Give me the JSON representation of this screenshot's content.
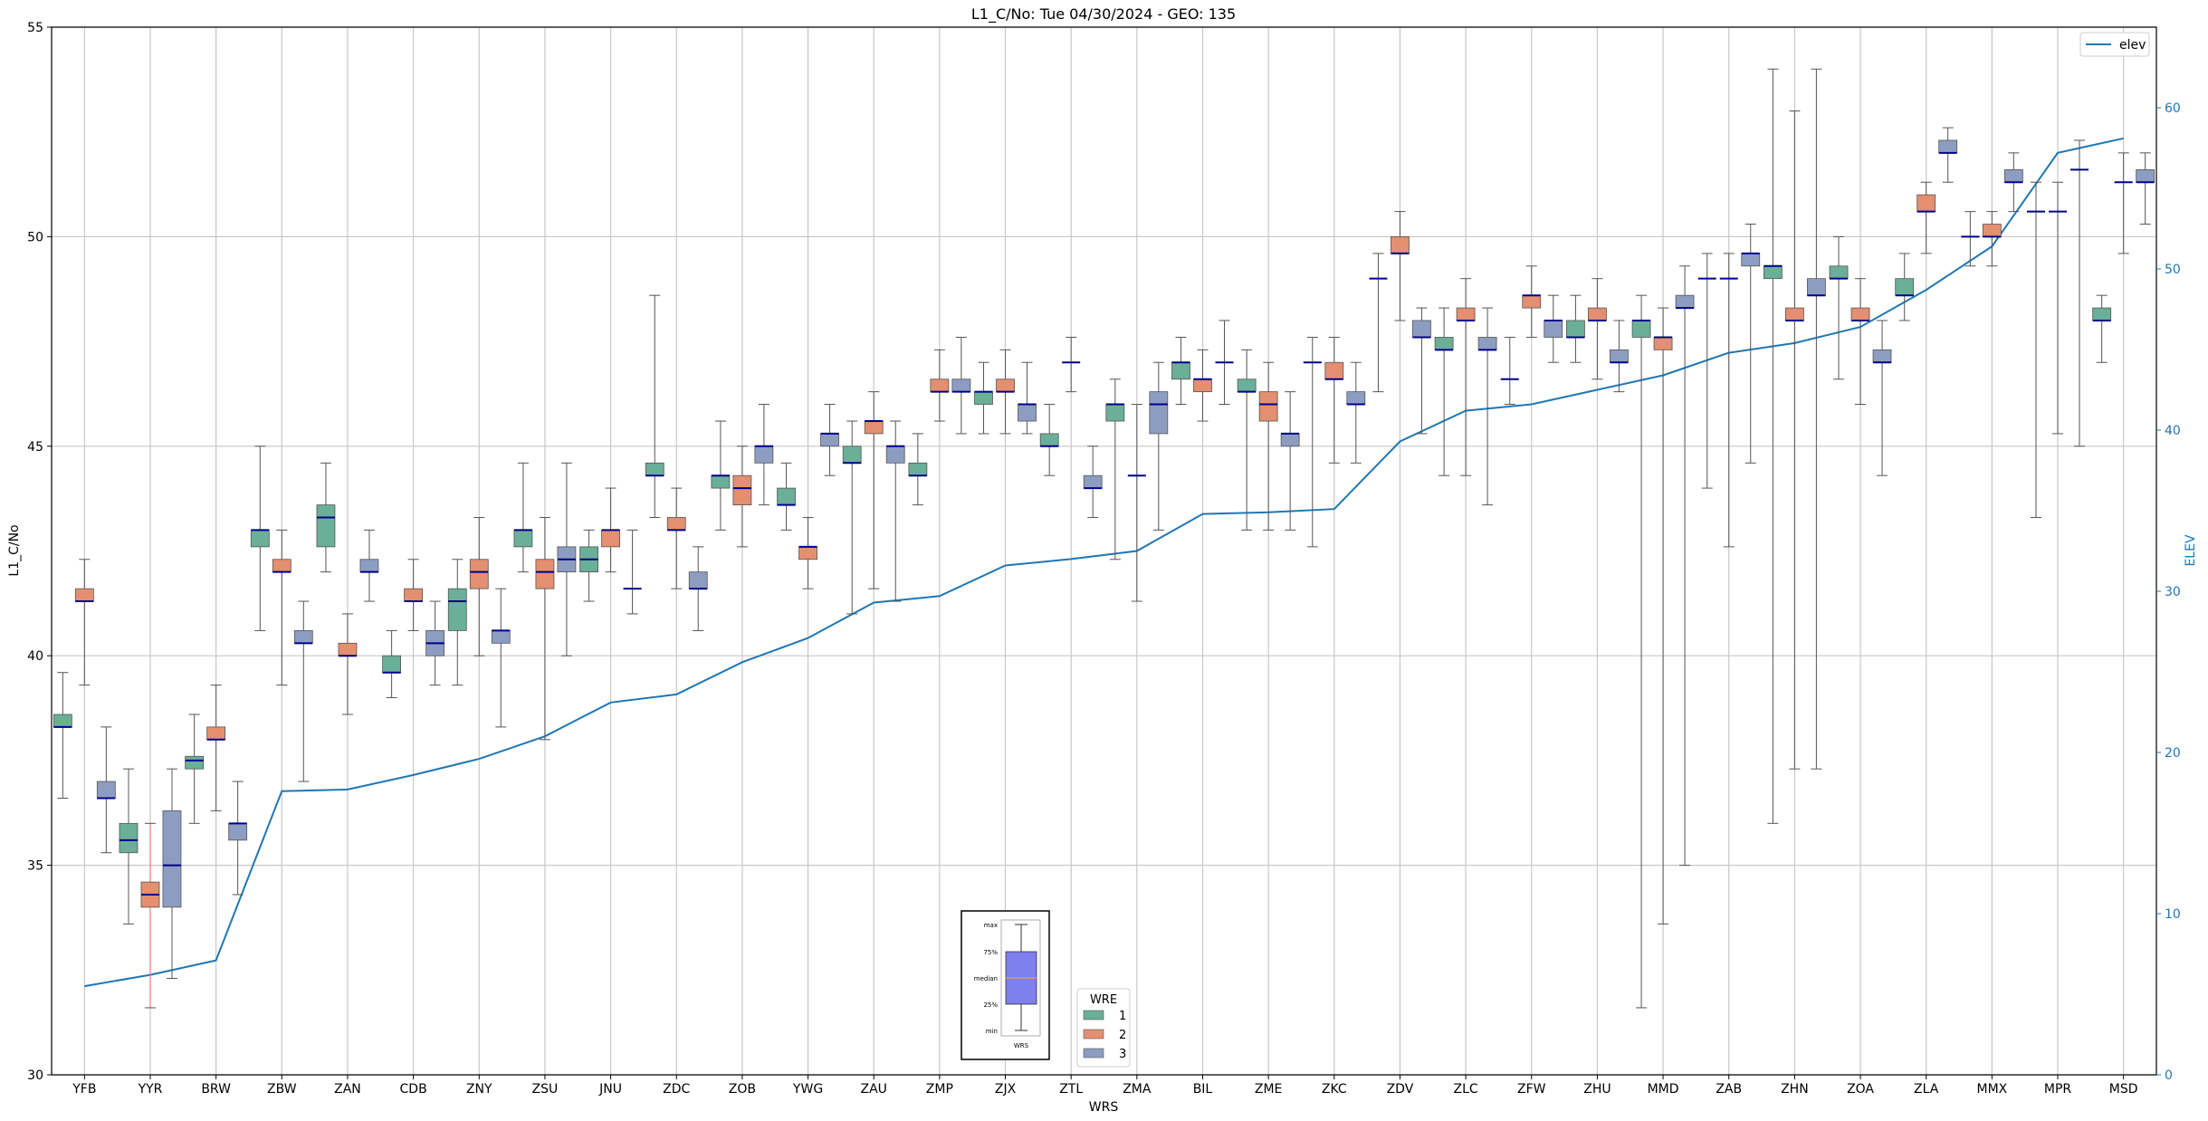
{
  "chart_data": {
    "type": "box",
    "title": "L1_C/No: Tue 04/30/2024 - GEO: 135",
    "xlabel": "WRS",
    "ylabel": "L1_C/No",
    "y2label": "ELEV",
    "ylim": [
      30,
      55
    ],
    "y2lim": [
      0,
      65
    ],
    "yticks": [
      "30",
      "35",
      "40",
      "45",
      "50",
      "55"
    ],
    "y2ticks": [
      "0",
      "10",
      "20",
      "30",
      "40",
      "50",
      "60"
    ],
    "grid": true,
    "categories": [
      "YFB",
      "YYR",
      "BRW",
      "ZBW",
      "ZAN",
      "CDB",
      "ZNY",
      "ZSU",
      "JNU",
      "ZDC",
      "ZOB",
      "YWG",
      "ZAU",
      "ZMP",
      "ZJX",
      "ZTL",
      "ZMA",
      "BIL",
      "ZME",
      "ZKC",
      "ZDV",
      "ZLC",
      "ZFW",
      "ZHU",
      "MMD",
      "ZAB",
      "ZHN",
      "ZOA",
      "ZLA",
      "MMX",
      "MPR",
      "MSD"
    ],
    "colors": {
      "wre1": "#6aaf97",
      "wre2": "#e38f70",
      "wre3": "#8d9dc1",
      "median": "#00008b",
      "elev": "#1f77b4",
      "outlier_whisker": "#ff6666"
    },
    "legend": {
      "title": "WRE",
      "entries": [
        "1",
        "2",
        "3"
      ],
      "placement": "bottom-center"
    },
    "legend2": {
      "entries": [
        "elev"
      ],
      "placement": "top-right"
    },
    "key_box": {
      "labels": [
        "max",
        "75%",
        "median",
        "25%",
        "min"
      ],
      "xlabel": "WRS"
    },
    "elev_series": {
      "name": "elev",
      "values": [
        5.5,
        6.2,
        7.1,
        17.6,
        17.7,
        18.6,
        19.6,
        21.0,
        23.1,
        23.6,
        25.6,
        27.1,
        29.3,
        29.7,
        31.6,
        32.0,
        32.5,
        34.8,
        34.9,
        35.1,
        39.3,
        41.2,
        41.6,
        42.5,
        43.4,
        44.8,
        45.4,
        46.4,
        48.7,
        51.4,
        57.2,
        58.1
      ]
    },
    "boxes": [
      {
        "wrs": "YFB",
        "wre": 1,
        "min": 36.6,
        "q1": 38.3,
        "median": 38.3,
        "q3": 38.6,
        "max": 39.6
      },
      {
        "wrs": "YFB",
        "wre": 2,
        "min": 39.3,
        "q1": 41.3,
        "median": 41.3,
        "q3": 41.6,
        "max": 42.3
      },
      {
        "wrs": "YFB",
        "wre": 3,
        "min": 35.3,
        "q1": 36.6,
        "median": 36.6,
        "q3": 37.0,
        "max": 38.3
      },
      {
        "wrs": "YYR",
        "wre": 1,
        "min": 33.6,
        "q1": 35.3,
        "median": 35.6,
        "q3": 36.0,
        "max": 37.3
      },
      {
        "wrs": "YYR",
        "wre": 2,
        "min": 31.6,
        "q1": 34.0,
        "median": 34.3,
        "q3": 34.6,
        "max": 36.0
      },
      {
        "wrs": "YYR",
        "wre": 3,
        "min": 32.3,
        "q1": 34.0,
        "median": 35.0,
        "q3": 36.3,
        "max": 37.3
      },
      {
        "wrs": "BRW",
        "wre": 1,
        "min": 36.0,
        "q1": 37.3,
        "median": 37.5,
        "q3": 37.6,
        "max": 38.6
      },
      {
        "wrs": "BRW",
        "wre": 2,
        "min": 36.3,
        "q1": 38.0,
        "median": 38.0,
        "q3": 38.3,
        "max": 39.3
      },
      {
        "wrs": "BRW",
        "wre": 3,
        "min": 34.3,
        "q1": 35.6,
        "median": 36.0,
        "q3": 36.0,
        "max": 37.0
      },
      {
        "wrs": "ZBW",
        "wre": 1,
        "min": 40.6,
        "q1": 42.6,
        "median": 43.0,
        "q3": 43.0,
        "max": 45.0
      },
      {
        "wrs": "ZBW",
        "wre": 2,
        "min": 39.3,
        "q1": 42.0,
        "median": 42.0,
        "q3": 42.3,
        "max": 43.0
      },
      {
        "wrs": "ZBW",
        "wre": 3,
        "min": 37.0,
        "q1": 40.3,
        "median": 40.3,
        "q3": 40.6,
        "max": 41.3
      },
      {
        "wrs": "ZAN",
        "wre": 1,
        "min": 42.0,
        "q1": 42.6,
        "median": 43.3,
        "q3": 43.6,
        "max": 44.6
      },
      {
        "wrs": "ZAN",
        "wre": 2,
        "min": 38.6,
        "q1": 40.0,
        "median": 40.0,
        "q3": 40.3,
        "max": 41.0
      },
      {
        "wrs": "ZAN",
        "wre": 3,
        "min": 41.3,
        "q1": 42.0,
        "median": 42.0,
        "q3": 42.3,
        "max": 43.0
      },
      {
        "wrs": "CDB",
        "wre": 1,
        "min": 39.0,
        "q1": 39.6,
        "median": 39.6,
        "q3": 40.0,
        "max": 40.6
      },
      {
        "wrs": "CDB",
        "wre": 2,
        "min": 40.6,
        "q1": 41.3,
        "median": 41.3,
        "q3": 41.6,
        "max": 42.3
      },
      {
        "wrs": "CDB",
        "wre": 3,
        "min": 39.3,
        "q1": 40.0,
        "median": 40.3,
        "q3": 40.6,
        "max": 41.3
      },
      {
        "wrs": "ZNY",
        "wre": 1,
        "min": 39.3,
        "q1": 40.6,
        "median": 41.3,
        "q3": 41.6,
        "max": 42.3
      },
      {
        "wrs": "ZNY",
        "wre": 2,
        "min": 40.0,
        "q1": 41.6,
        "median": 42.0,
        "q3": 42.3,
        "max": 43.3
      },
      {
        "wrs": "ZNY",
        "wre": 3,
        "min": 38.3,
        "q1": 40.3,
        "median": 40.6,
        "q3": 40.6,
        "max": 41.6
      },
      {
        "wrs": "ZSU",
        "wre": 1,
        "min": 42.0,
        "q1": 42.6,
        "median": 43.0,
        "q3": 43.0,
        "max": 44.6
      },
      {
        "wrs": "ZSU",
        "wre": 2,
        "min": 38.0,
        "q1": 41.6,
        "median": 42.0,
        "q3": 42.3,
        "max": 43.3
      },
      {
        "wrs": "ZSU",
        "wre": 3,
        "min": 40.0,
        "q1": 42.0,
        "median": 42.3,
        "q3": 42.6,
        "max": 44.6
      },
      {
        "wrs": "JNU",
        "wre": 1,
        "min": 41.3,
        "q1": 42.0,
        "median": 42.3,
        "q3": 42.6,
        "max": 43.0
      },
      {
        "wrs": "JNU",
        "wre": 2,
        "min": 42.0,
        "q1": 42.6,
        "median": 43.0,
        "q3": 43.0,
        "max": 44.0
      },
      {
        "wrs": "JNU",
        "wre": 3,
        "min": 41.0,
        "q1": 41.6,
        "median": 41.6,
        "q3": 41.6,
        "max": 43.0
      },
      {
        "wrs": "ZDC",
        "wre": 1,
        "min": 43.3,
        "q1": 44.3,
        "median": 44.3,
        "q3": 44.6,
        "max": 48.6
      },
      {
        "wrs": "ZDC",
        "wre": 2,
        "min": 41.6,
        "q1": 43.0,
        "median": 43.0,
        "q3": 43.3,
        "max": 44.0
      },
      {
        "wrs": "ZDC",
        "wre": 3,
        "min": 40.6,
        "q1": 41.6,
        "median": 41.6,
        "q3": 42.0,
        "max": 42.6
      },
      {
        "wrs": "ZOB",
        "wre": 1,
        "min": 43.0,
        "q1": 44.0,
        "median": 44.3,
        "q3": 44.3,
        "max": 45.6
      },
      {
        "wrs": "ZOB",
        "wre": 2,
        "min": 42.6,
        "q1": 43.6,
        "median": 44.0,
        "q3": 44.3,
        "max": 45.0
      },
      {
        "wrs": "ZOB",
        "wre": 3,
        "min": 43.6,
        "q1": 44.6,
        "median": 45.0,
        "q3": 45.0,
        "max": 46.0
      },
      {
        "wrs": "YWG",
        "wre": 1,
        "min": 43.0,
        "q1": 43.6,
        "median": 43.6,
        "q3": 44.0,
        "max": 44.6
      },
      {
        "wrs": "YWG",
        "wre": 2,
        "min": 41.6,
        "q1": 42.3,
        "median": 42.6,
        "q3": 42.6,
        "max": 43.3
      },
      {
        "wrs": "YWG",
        "wre": 3,
        "min": 44.3,
        "q1": 45.0,
        "median": 45.3,
        "q3": 45.3,
        "max": 46.0
      },
      {
        "wrs": "ZAU",
        "wre": 1,
        "min": 41.0,
        "q1": 44.6,
        "median": 44.6,
        "q3": 45.0,
        "max": 45.6
      },
      {
        "wrs": "ZAU",
        "wre": 2,
        "min": 41.6,
        "q1": 45.3,
        "median": 45.6,
        "q3": 45.6,
        "max": 46.3
      },
      {
        "wrs": "ZAU",
        "wre": 3,
        "min": 41.3,
        "q1": 44.6,
        "median": 45.0,
        "q3": 45.0,
        "max": 45.6
      },
      {
        "wrs": "ZMP",
        "wre": 1,
        "min": 43.6,
        "q1": 44.3,
        "median": 44.3,
        "q3": 44.6,
        "max": 45.3
      },
      {
        "wrs": "ZMP",
        "wre": 2,
        "min": 45.6,
        "q1": 46.3,
        "median": 46.3,
        "q3": 46.6,
        "max": 47.3
      },
      {
        "wrs": "ZMP",
        "wre": 3,
        "min": 45.3,
        "q1": 46.3,
        "median": 46.3,
        "q3": 46.6,
        "max": 47.6
      },
      {
        "wrs": "ZJX",
        "wre": 1,
        "min": 45.3,
        "q1": 46.0,
        "median": 46.3,
        "q3": 46.3,
        "max": 47.0
      },
      {
        "wrs": "ZJX",
        "wre": 2,
        "min": 45.3,
        "q1": 46.3,
        "median": 46.3,
        "q3": 46.6,
        "max": 47.3
      },
      {
        "wrs": "ZJX",
        "wre": 3,
        "min": 45.3,
        "q1": 45.6,
        "median": 46.0,
        "q3": 46.0,
        "max": 47.0
      },
      {
        "wrs": "ZTL",
        "wre": 1,
        "min": 44.3,
        "q1": 45.0,
        "median": 45.0,
        "q3": 45.3,
        "max": 46.0
      },
      {
        "wrs": "ZTL",
        "wre": 2,
        "min": 46.3,
        "q1": 47.0,
        "median": 47.0,
        "q3": 47.0,
        "max": 47.6
      },
      {
        "wrs": "ZTL",
        "wre": 3,
        "min": 43.3,
        "q1": 44.0,
        "median": 44.0,
        "q3": 44.3,
        "max": 45.0
      },
      {
        "wrs": "ZMA",
        "wre": 1,
        "min": 42.3,
        "q1": 45.6,
        "median": 46.0,
        "q3": 46.0,
        "max": 46.6
      },
      {
        "wrs": "ZMA",
        "wre": 2,
        "min": 41.3,
        "q1": 44.3,
        "median": 44.3,
        "q3": 44.3,
        "max": 46.0
      },
      {
        "wrs": "ZMA",
        "wre": 3,
        "min": 43.0,
        "q1": 45.3,
        "median": 46.0,
        "q3": 46.3,
        "max": 47.0
      },
      {
        "wrs": "BIL",
        "wre": 1,
        "min": 46.0,
        "q1": 46.6,
        "median": 47.0,
        "q3": 47.0,
        "max": 47.6
      },
      {
        "wrs": "BIL",
        "wre": 2,
        "min": 45.6,
        "q1": 46.3,
        "median": 46.6,
        "q3": 46.6,
        "max": 47.3
      },
      {
        "wrs": "BIL",
        "wre": 3,
        "min": 46.0,
        "q1": 47.0,
        "median": 47.0,
        "q3": 47.0,
        "max": 48.0
      },
      {
        "wrs": "ZME",
        "wre": 1,
        "min": 43.0,
        "q1": 46.3,
        "median": 46.3,
        "q3": 46.6,
        "max": 47.3
      },
      {
        "wrs": "ZME",
        "wre": 2,
        "min": 43.0,
        "q1": 45.6,
        "median": 46.0,
        "q3": 46.3,
        "max": 47.0
      },
      {
        "wrs": "ZME",
        "wre": 3,
        "min": 43.0,
        "q1": 45.0,
        "median": 45.3,
        "q3": 45.3,
        "max": 46.3
      },
      {
        "wrs": "ZKC",
        "wre": 1,
        "min": 42.6,
        "q1": 47.0,
        "median": 47.0,
        "q3": 47.0,
        "max": 47.6
      },
      {
        "wrs": "ZKC",
        "wre": 2,
        "min": 44.6,
        "q1": 46.6,
        "median": 46.6,
        "q3": 47.0,
        "max": 47.6
      },
      {
        "wrs": "ZKC",
        "wre": 3,
        "min": 44.6,
        "q1": 46.0,
        "median": 46.0,
        "q3": 46.3,
        "max": 47.0
      },
      {
        "wrs": "ZDV",
        "wre": 1,
        "min": 46.3,
        "q1": 49.0,
        "median": 49.0,
        "q3": 49.0,
        "max": 49.6
      },
      {
        "wrs": "ZDV",
        "wre": 2,
        "min": 48.0,
        "q1": 49.6,
        "median": 49.6,
        "q3": 50.0,
        "max": 50.6
      },
      {
        "wrs": "ZDV",
        "wre": 3,
        "min": 45.3,
        "q1": 47.6,
        "median": 47.6,
        "q3": 48.0,
        "max": 48.3
      },
      {
        "wrs": "ZLC",
        "wre": 1,
        "min": 44.3,
        "q1": 47.3,
        "median": 47.3,
        "q3": 47.6,
        "max": 48.3
      },
      {
        "wrs": "ZLC",
        "wre": 2,
        "min": 44.3,
        "q1": 48.0,
        "median": 48.0,
        "q3": 48.3,
        "max": 49.0
      },
      {
        "wrs": "ZLC",
        "wre": 3,
        "min": 43.6,
        "q1": 47.3,
        "median": 47.3,
        "q3": 47.6,
        "max": 48.3
      },
      {
        "wrs": "ZFW",
        "wre": 1,
        "min": 46.0,
        "q1": 46.6,
        "median": 46.6,
        "q3": 46.6,
        "max": 47.6
      },
      {
        "wrs": "ZFW",
        "wre": 2,
        "min": 47.6,
        "q1": 48.3,
        "median": 48.6,
        "q3": 48.6,
        "max": 49.3
      },
      {
        "wrs": "ZFW",
        "wre": 3,
        "min": 47.0,
        "q1": 47.6,
        "median": 48.0,
        "q3": 48.0,
        "max": 48.6
      },
      {
        "wrs": "ZHU",
        "wre": 1,
        "min": 47.0,
        "q1": 47.6,
        "median": 47.6,
        "q3": 48.0,
        "max": 48.6
      },
      {
        "wrs": "ZHU",
        "wre": 2,
        "min": 46.6,
        "q1": 48.0,
        "median": 48.0,
        "q3": 48.3,
        "max": 49.0
      },
      {
        "wrs": "ZHU",
        "wre": 3,
        "min": 46.3,
        "q1": 47.0,
        "median": 47.0,
        "q3": 47.3,
        "max": 48.0
      },
      {
        "wrs": "MMD",
        "wre": 1,
        "min": 31.6,
        "q1": 47.6,
        "median": 48.0,
        "q3": 48.0,
        "max": 48.6
      },
      {
        "wrs": "MMD",
        "wre": 2,
        "min": 33.6,
        "q1": 47.3,
        "median": 47.6,
        "q3": 47.6,
        "max": 48.3
      },
      {
        "wrs": "MMD",
        "wre": 3,
        "min": 35.0,
        "q1": 48.3,
        "median": 48.3,
        "q3": 48.6,
        "max": 49.3
      },
      {
        "wrs": "ZAB",
        "wre": 1,
        "min": 44.0,
        "q1": 49.0,
        "median": 49.0,
        "q3": 49.0,
        "max": 49.6
      },
      {
        "wrs": "ZAB",
        "wre": 2,
        "min": 42.6,
        "q1": 49.0,
        "median": 49.0,
        "q3": 49.0,
        "max": 49.6
      },
      {
        "wrs": "ZAB",
        "wre": 3,
        "min": 44.6,
        "q1": 49.3,
        "median": 49.6,
        "q3": 49.6,
        "max": 50.3
      },
      {
        "wrs": "ZHN",
        "wre": 1,
        "min": 36.0,
        "q1": 49.0,
        "median": 49.3,
        "q3": 49.3,
        "max": 54.0
      },
      {
        "wrs": "ZHN",
        "wre": 2,
        "min": 37.3,
        "q1": 48.0,
        "median": 48.0,
        "q3": 48.3,
        "max": 53.0
      },
      {
        "wrs": "ZHN",
        "wre": 3,
        "min": 37.3,
        "q1": 48.6,
        "median": 48.6,
        "q3": 49.0,
        "max": 54.0
      },
      {
        "wrs": "ZOA",
        "wre": 1,
        "min": 46.6,
        "q1": 49.0,
        "median": 49.0,
        "q3": 49.3,
        "max": 50.0
      },
      {
        "wrs": "ZOA",
        "wre": 2,
        "min": 46.0,
        "q1": 48.0,
        "median": 48.0,
        "q3": 48.3,
        "max": 49.0
      },
      {
        "wrs": "ZOA",
        "wre": 3,
        "min": 44.3,
        "q1": 47.0,
        "median": 47.0,
        "q3": 47.3,
        "max": 48.0
      },
      {
        "wrs": "ZLA",
        "wre": 1,
        "min": 48.0,
        "q1": 48.6,
        "median": 48.6,
        "q3": 49.0,
        "max": 49.6
      },
      {
        "wrs": "ZLA",
        "wre": 2,
        "min": 49.6,
        "q1": 50.6,
        "median": 50.6,
        "q3": 51.0,
        "max": 51.3
      },
      {
        "wrs": "ZLA",
        "wre": 3,
        "min": 51.3,
        "q1": 52.0,
        "median": 52.0,
        "q3": 52.3,
        "max": 52.6
      },
      {
        "wrs": "MMX",
        "wre": 1,
        "min": 49.3,
        "q1": 50.0,
        "median": 50.0,
        "q3": 50.0,
        "max": 50.6
      },
      {
        "wrs": "MMX",
        "wre": 2,
        "min": 49.3,
        "q1": 50.0,
        "median": 50.0,
        "q3": 50.3,
        "max": 50.6
      },
      {
        "wrs": "MMX",
        "wre": 3,
        "min": 50.6,
        "q1": 51.3,
        "median": 51.3,
        "q3": 51.6,
        "max": 52.0
      },
      {
        "wrs": "MPR",
        "wre": 1,
        "min": 43.3,
        "q1": 50.6,
        "median": 50.6,
        "q3": 50.6,
        "max": 51.3
      },
      {
        "wrs": "MPR",
        "wre": 2,
        "min": 45.3,
        "q1": 50.6,
        "median": 50.6,
        "q3": 50.6,
        "max": 51.3
      },
      {
        "wrs": "MPR",
        "wre": 3,
        "min": 45.0,
        "q1": 51.6,
        "median": 51.6,
        "q3": 51.6,
        "max": 52.3
      },
      {
        "wrs": "MSD",
        "wre": 1,
        "min": 47.0,
        "q1": 48.0,
        "median": 48.0,
        "q3": 48.3,
        "max": 48.6
      },
      {
        "wrs": "MSD",
        "wre": 2,
        "min": 49.6,
        "q1": 51.3,
        "median": 51.3,
        "q3": 51.3,
        "max": 52.0
      },
      {
        "wrs": "MSD",
        "wre": 3,
        "min": 50.3,
        "q1": 51.3,
        "median": 51.3,
        "q3": 51.6,
        "max": 52.0
      }
    ]
  }
}
